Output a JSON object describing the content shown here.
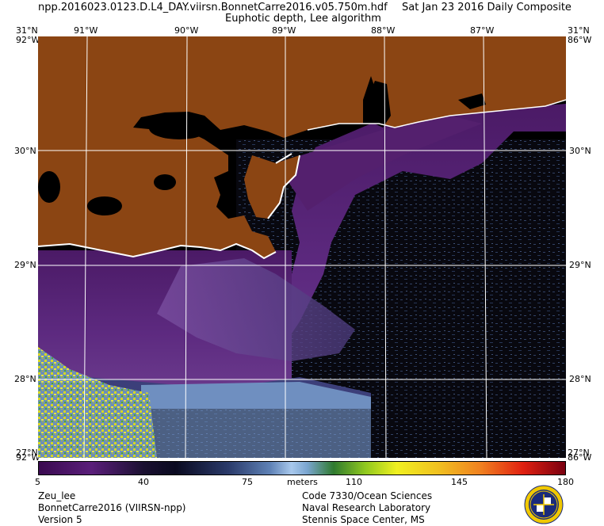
{
  "header": {
    "filename": "npp.2016023.0123.D.L4_DAY.viirsn.BonnetCarre2016.v05.750m.hdf",
    "date": "Sat Jan 23 2016 Daily Composite",
    "product": "Euphotic depth, Lee algorithm"
  },
  "axes": {
    "lon_labels": [
      "91°W",
      "90°W",
      "89°W",
      "88°W",
      "87°W"
    ],
    "lat_labels": [
      "30°N",
      "29°N",
      "28°N"
    ],
    "corner_top_left_lat": "31°N",
    "corner_top_left_lon": "92°W",
    "corner_top_right_lat": "31°N",
    "corner_top_right_lon": "86°W",
    "corner_bottom_left_lat": "27°N",
    "corner_bottom_left_lon": "92°W",
    "corner_bottom_right_lat": "27°N",
    "corner_bottom_right_lon": "86°W"
  },
  "colorbar": {
    "ticks": [
      "5",
      "40",
      "75",
      "110",
      "145",
      "180"
    ],
    "unit": "meters",
    "min": 5,
    "max": 180
  },
  "footer": {
    "left": [
      "Zeu_lee",
      "BonnetCarre2016 (VIIRSN-npp)",
      "Version 5"
    ],
    "right": [
      "Code 7330/Ocean Sciences",
      "Naval Research Laboratory",
      "Stennis Space Center, MS"
    ]
  },
  "colors": {
    "land": "#8b4513",
    "no_data": "#000000",
    "shallow": "#5a1e7a",
    "gridline": "#ffffff"
  },
  "icons": {
    "seal": "navy-seal-icon"
  }
}
